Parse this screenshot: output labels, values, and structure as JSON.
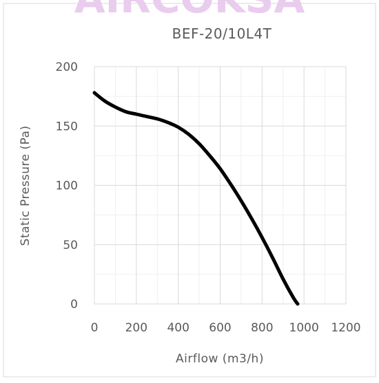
{
  "watermark": "AIRCOKSA",
  "chart_data": {
    "type": "line",
    "title": "BEF-20/10L4T",
    "xlabel": "Airflow (m3/h)",
    "ylabel": "Static Pressure (Pa)",
    "xlim": [
      0,
      1200
    ],
    "ylim": [
      0,
      200
    ],
    "xticks": [
      0,
      200,
      400,
      600,
      800,
      1000,
      1200
    ],
    "yticks": [
      0,
      50,
      100,
      150,
      200
    ],
    "x_minor_step": 100,
    "y_minor_step": 25,
    "grid": true,
    "series": [
      {
        "color": "#000000",
        "x": [
          0,
          50,
          100,
          150,
          200,
          250,
          300,
          350,
          400,
          450,
          500,
          550,
          600,
          650,
          700,
          750,
          800,
          850,
          900,
          950,
          970
        ],
        "y": [
          178,
          171,
          166,
          162,
          160,
          158,
          156,
          153,
          149,
          143,
          135,
          125,
          114,
          101,
          87,
          72,
          56,
          39,
          21,
          5,
          0
        ]
      }
    ]
  }
}
